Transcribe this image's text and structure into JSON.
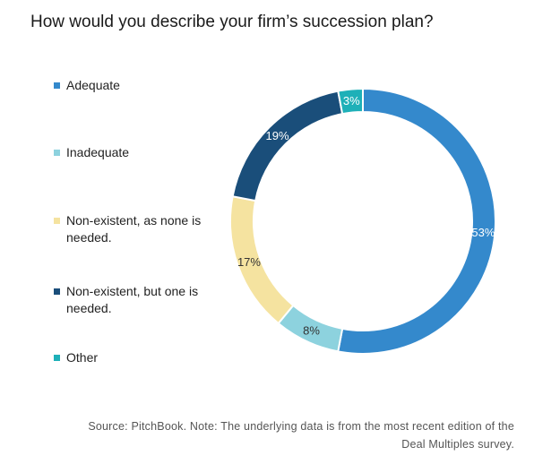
{
  "title": "How would you describe your firm’s succession plan?",
  "source": "Source: PitchBook. Note: The underlying data is from the most recent edition of the Deal Multiples survey.",
  "chart_data": {
    "type": "pie",
    "title": "How would you describe your firm’s succession plan?",
    "legend_position": "left",
    "categories": [
      "Adequate",
      "Inadequate",
      "Non-existent, as none is needed.",
      "Non-existent, but one is needed.",
      "Other"
    ],
    "values": [
      53,
      8,
      17,
      19,
      3
    ],
    "value_labels": [
      "53%",
      "8%",
      "17%",
      "19%",
      "3%"
    ],
    "colors": [
      "#3489cc",
      "#8dd2de",
      "#f5e3a0",
      "#1a4e7a",
      "#1eb0b8"
    ]
  }
}
